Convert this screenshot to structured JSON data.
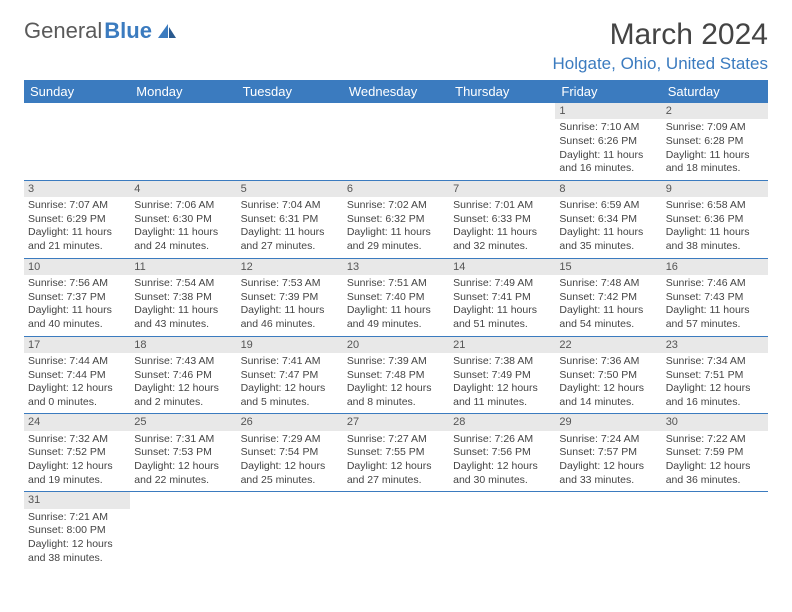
{
  "logo": {
    "text1": "General",
    "text2": "Blue"
  },
  "title": "March 2024",
  "location": "Holgate, Ohio, United States",
  "colors": {
    "header_bg": "#3b7bbf",
    "header_text": "#ffffff",
    "daynum_bg": "#e8e8e8",
    "border": "#3b7bbf",
    "logo_gray": "#5a5a5a",
    "logo_blue": "#3b7bbf"
  },
  "weekdays": [
    "Sunday",
    "Monday",
    "Tuesday",
    "Wednesday",
    "Thursday",
    "Friday",
    "Saturday"
  ],
  "weeks": [
    [
      null,
      null,
      null,
      null,
      null,
      {
        "n": "1",
        "sr": "7:10 AM",
        "ss": "6:26 PM",
        "dl": "11 hours and 16 minutes."
      },
      {
        "n": "2",
        "sr": "7:09 AM",
        "ss": "6:28 PM",
        "dl": "11 hours and 18 minutes."
      }
    ],
    [
      {
        "n": "3",
        "sr": "7:07 AM",
        "ss": "6:29 PM",
        "dl": "11 hours and 21 minutes."
      },
      {
        "n": "4",
        "sr": "7:06 AM",
        "ss": "6:30 PM",
        "dl": "11 hours and 24 minutes."
      },
      {
        "n": "5",
        "sr": "7:04 AM",
        "ss": "6:31 PM",
        "dl": "11 hours and 27 minutes."
      },
      {
        "n": "6",
        "sr": "7:02 AM",
        "ss": "6:32 PM",
        "dl": "11 hours and 29 minutes."
      },
      {
        "n": "7",
        "sr": "7:01 AM",
        "ss": "6:33 PM",
        "dl": "11 hours and 32 minutes."
      },
      {
        "n": "8",
        "sr": "6:59 AM",
        "ss": "6:34 PM",
        "dl": "11 hours and 35 minutes."
      },
      {
        "n": "9",
        "sr": "6:58 AM",
        "ss": "6:36 PM",
        "dl": "11 hours and 38 minutes."
      }
    ],
    [
      {
        "n": "10",
        "sr": "7:56 AM",
        "ss": "7:37 PM",
        "dl": "11 hours and 40 minutes."
      },
      {
        "n": "11",
        "sr": "7:54 AM",
        "ss": "7:38 PM",
        "dl": "11 hours and 43 minutes."
      },
      {
        "n": "12",
        "sr": "7:53 AM",
        "ss": "7:39 PM",
        "dl": "11 hours and 46 minutes."
      },
      {
        "n": "13",
        "sr": "7:51 AM",
        "ss": "7:40 PM",
        "dl": "11 hours and 49 minutes."
      },
      {
        "n": "14",
        "sr": "7:49 AM",
        "ss": "7:41 PM",
        "dl": "11 hours and 51 minutes."
      },
      {
        "n": "15",
        "sr": "7:48 AM",
        "ss": "7:42 PM",
        "dl": "11 hours and 54 minutes."
      },
      {
        "n": "16",
        "sr": "7:46 AM",
        "ss": "7:43 PM",
        "dl": "11 hours and 57 minutes."
      }
    ],
    [
      {
        "n": "17",
        "sr": "7:44 AM",
        "ss": "7:44 PM",
        "dl": "12 hours and 0 minutes."
      },
      {
        "n": "18",
        "sr": "7:43 AM",
        "ss": "7:46 PM",
        "dl": "12 hours and 2 minutes."
      },
      {
        "n": "19",
        "sr": "7:41 AM",
        "ss": "7:47 PM",
        "dl": "12 hours and 5 minutes."
      },
      {
        "n": "20",
        "sr": "7:39 AM",
        "ss": "7:48 PM",
        "dl": "12 hours and 8 minutes."
      },
      {
        "n": "21",
        "sr": "7:38 AM",
        "ss": "7:49 PM",
        "dl": "12 hours and 11 minutes."
      },
      {
        "n": "22",
        "sr": "7:36 AM",
        "ss": "7:50 PM",
        "dl": "12 hours and 14 minutes."
      },
      {
        "n": "23",
        "sr": "7:34 AM",
        "ss": "7:51 PM",
        "dl": "12 hours and 16 minutes."
      }
    ],
    [
      {
        "n": "24",
        "sr": "7:32 AM",
        "ss": "7:52 PM",
        "dl": "12 hours and 19 minutes."
      },
      {
        "n": "25",
        "sr": "7:31 AM",
        "ss": "7:53 PM",
        "dl": "12 hours and 22 minutes."
      },
      {
        "n": "26",
        "sr": "7:29 AM",
        "ss": "7:54 PM",
        "dl": "12 hours and 25 minutes."
      },
      {
        "n": "27",
        "sr": "7:27 AM",
        "ss": "7:55 PM",
        "dl": "12 hours and 27 minutes."
      },
      {
        "n": "28",
        "sr": "7:26 AM",
        "ss": "7:56 PM",
        "dl": "12 hours and 30 minutes."
      },
      {
        "n": "29",
        "sr": "7:24 AM",
        "ss": "7:57 PM",
        "dl": "12 hours and 33 minutes."
      },
      {
        "n": "30",
        "sr": "7:22 AM",
        "ss": "7:59 PM",
        "dl": "12 hours and 36 minutes."
      }
    ],
    [
      {
        "n": "31",
        "sr": "7:21 AM",
        "ss": "8:00 PM",
        "dl": "12 hours and 38 minutes."
      },
      null,
      null,
      null,
      null,
      null,
      null
    ]
  ],
  "labels": {
    "sunrise": "Sunrise:",
    "sunset": "Sunset:",
    "daylight": "Daylight:"
  }
}
